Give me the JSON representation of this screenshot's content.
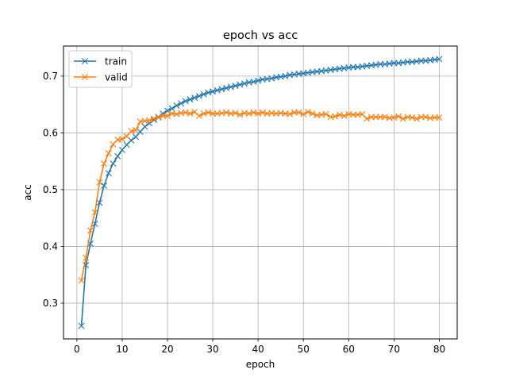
{
  "chart_data": {
    "type": "line",
    "title": "epoch vs acc",
    "xlabel": "epoch",
    "ylabel": "acc",
    "xlim": [
      -2.95,
      83.95
    ],
    "ylim": [
      0.237,
      0.753
    ],
    "xticks": [
      0,
      10,
      20,
      30,
      40,
      50,
      60,
      70,
      80
    ],
    "yticks": [
      0.3,
      0.4,
      0.5,
      0.6,
      0.7
    ],
    "grid": true,
    "legend_position": "top-left",
    "marker": "x",
    "x": [
      1,
      2,
      3,
      4,
      5,
      6,
      7,
      8,
      9,
      10,
      11,
      12,
      13,
      14,
      15,
      16,
      17,
      18,
      19,
      20,
      21,
      22,
      23,
      24,
      25,
      26,
      27,
      28,
      29,
      30,
      31,
      32,
      33,
      34,
      35,
      36,
      37,
      38,
      39,
      40,
      41,
      42,
      43,
      44,
      45,
      46,
      47,
      48,
      49,
      50,
      51,
      52,
      53,
      54,
      55,
      56,
      57,
      58,
      59,
      60,
      61,
      62,
      63,
      64,
      65,
      66,
      67,
      68,
      69,
      70,
      71,
      72,
      73,
      74,
      75,
      76,
      77,
      78,
      79,
      80
    ],
    "series": [
      {
        "name": "train",
        "color": "#1f77b4",
        "values": [
          0.26,
          0.367,
          0.405,
          0.44,
          0.477,
          0.507,
          0.529,
          0.546,
          0.559,
          0.57,
          0.579,
          0.587,
          0.593,
          0.602,
          0.611,
          0.617,
          0.623,
          0.628,
          0.634,
          0.639,
          0.643,
          0.648,
          0.652,
          0.656,
          0.659,
          0.662,
          0.665,
          0.668,
          0.671,
          0.673,
          0.675,
          0.677,
          0.679,
          0.681,
          0.683,
          0.685,
          0.687,
          0.689,
          0.69,
          0.692,
          0.694,
          0.695,
          0.696,
          0.698,
          0.699,
          0.7,
          0.702,
          0.703,
          0.704,
          0.705,
          0.706,
          0.707,
          0.708,
          0.709,
          0.71,
          0.711,
          0.712,
          0.713,
          0.714,
          0.715,
          0.716,
          0.716,
          0.717,
          0.718,
          0.719,
          0.72,
          0.721,
          0.721,
          0.722,
          0.723,
          0.723,
          0.724,
          0.725,
          0.725,
          0.726,
          0.727,
          0.727,
          0.728,
          0.729,
          0.73
        ]
      },
      {
        "name": "valid",
        "color": "#ff7f0e",
        "values": [
          0.34,
          0.38,
          0.428,
          0.46,
          0.513,
          0.546,
          0.564,
          0.58,
          0.588,
          0.589,
          0.594,
          0.603,
          0.605,
          0.62,
          0.621,
          0.622,
          0.625,
          0.627,
          0.63,
          0.63,
          0.634,
          0.633,
          0.635,
          0.636,
          0.634,
          0.637,
          0.63,
          0.634,
          0.636,
          0.634,
          0.634,
          0.635,
          0.636,
          0.634,
          0.635,
          0.632,
          0.635,
          0.634,
          0.636,
          0.634,
          0.636,
          0.634,
          0.635,
          0.634,
          0.635,
          0.634,
          0.633,
          0.636,
          0.636,
          0.633,
          0.637,
          0.634,
          0.631,
          0.632,
          0.633,
          0.628,
          0.629,
          0.632,
          0.63,
          0.633,
          0.632,
          0.632,
          0.633,
          0.625,
          0.628,
          0.628,
          0.628,
          0.628,
          0.626,
          0.627,
          0.629,
          0.625,
          0.628,
          0.627,
          0.625,
          0.628,
          0.628,
          0.626,
          0.627,
          0.627
        ]
      }
    ]
  }
}
